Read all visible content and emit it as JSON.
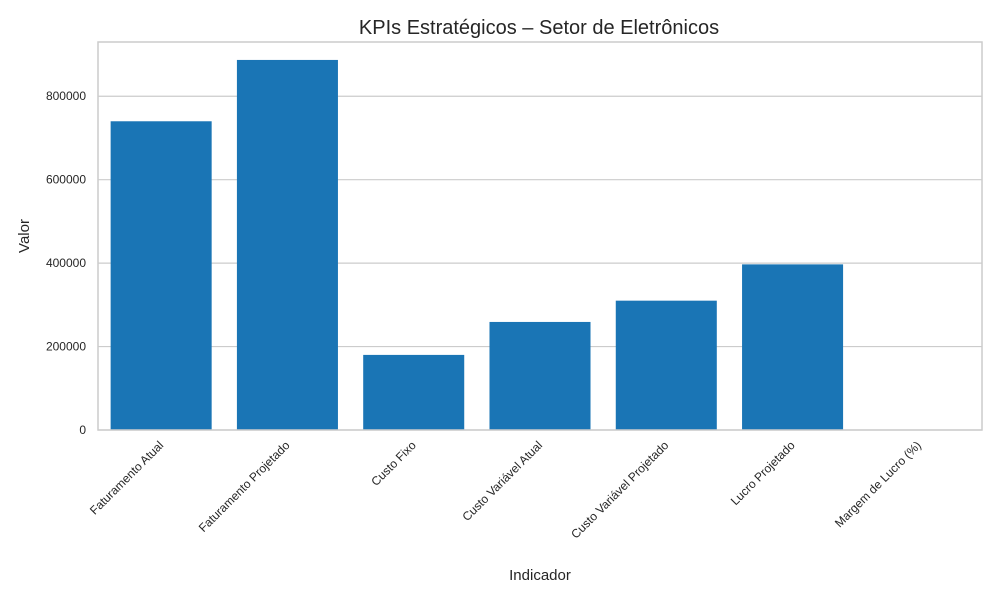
{
  "chart_data": {
    "type": "bar",
    "title": "KPIs Estratégicos – Setor de Eletrônicos",
    "xlabel": "Indicador",
    "ylabel": "Valor",
    "categories": [
      "Faturamento Atual",
      "Faturamento Projetado",
      "Custo Fixo",
      "Custo Variável Atual",
      "Custo Variável Projetado",
      "Lucro Projetado",
      "Margem de Lucro (%)"
    ],
    "values": [
      740000,
      887000,
      180000,
      259000,
      310000,
      397000,
      45
    ],
    "ylim": [
      0,
      930000
    ],
    "yticks": [
      0,
      200000,
      400000,
      600000,
      800000
    ],
    "grid": true,
    "legend": "none",
    "bar_color": "#1a75b5",
    "grid_color": "#cccccc",
    "frame_color": "#cccccc"
  }
}
